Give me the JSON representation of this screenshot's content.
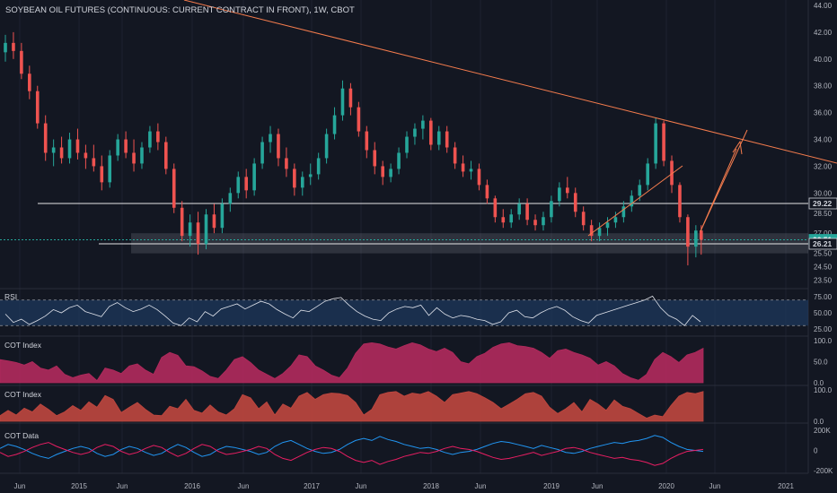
{
  "chart_data": {
    "type": "candlestick",
    "title": "SOYBEAN OIL FUTURES (CONTINUOUS: CURRENT CONTRACT IN FRONT), 1W, CBOT",
    "x_axis": {
      "labels": [
        "Jun",
        "2015",
        "Jun",
        "2016",
        "Jun",
        "2017",
        "Jun",
        "2018",
        "Jun",
        "2019",
        "Jun",
        "2020",
        "Jun",
        "2021"
      ]
    },
    "price_axis": {
      "ticks": [
        "44.00",
        "42.00",
        "40.00",
        "38.00",
        "36.00",
        "34.00",
        "32.00",
        "30.00",
        "28.50",
        "27.00",
        "25.50",
        "24.50",
        "23.50"
      ],
      "ylim": [
        23.0,
        44.0
      ],
      "price_labels": [
        {
          "text": "29.22",
          "value": 29.22,
          "style": "plain"
        },
        {
          "text": "26.51",
          "value": 26.51,
          "style": "teal"
        },
        {
          "text": "26.21",
          "value": 26.21,
          "style": "plain"
        }
      ]
    },
    "candles": [
      {
        "week": 0,
        "o": 40.5,
        "h": 41.8,
        "l": 39.8,
        "c": 41.2
      },
      {
        "week": 3,
        "o": 41.2,
        "h": 42.0,
        "l": 40.0,
        "c": 40.6
      },
      {
        "week": 6,
        "o": 40.6,
        "h": 41.2,
        "l": 38.5,
        "c": 38.9
      },
      {
        "week": 9,
        "o": 38.9,
        "h": 39.5,
        "l": 37.0,
        "c": 37.6
      },
      {
        "week": 12,
        "o": 37.6,
        "h": 38.0,
        "l": 34.8,
        "c": 35.2
      },
      {
        "week": 15,
        "o": 35.2,
        "h": 35.8,
        "l": 32.4,
        "c": 33.0
      },
      {
        "week": 18,
        "o": 33.0,
        "h": 34.0,
        "l": 32.0,
        "c": 33.4
      },
      {
        "week": 21,
        "o": 33.4,
        "h": 34.2,
        "l": 32.2,
        "c": 32.6
      },
      {
        "week": 24,
        "o": 32.6,
        "h": 34.5,
        "l": 32.2,
        "c": 34.0
      },
      {
        "week": 27,
        "o": 34.0,
        "h": 34.8,
        "l": 32.5,
        "c": 33.0
      },
      {
        "week": 30,
        "o": 33.0,
        "h": 33.6,
        "l": 31.8,
        "c": 32.6
      },
      {
        "week": 33,
        "o": 32.6,
        "h": 33.6,
        "l": 31.6,
        "c": 32.0
      },
      {
        "week": 36,
        "o": 32.0,
        "h": 32.8,
        "l": 30.2,
        "c": 30.8
      },
      {
        "week": 39,
        "o": 30.8,
        "h": 33.2,
        "l": 30.4,
        "c": 32.8
      },
      {
        "week": 42,
        "o": 32.8,
        "h": 34.4,
        "l": 32.4,
        "c": 34.0
      },
      {
        "week": 45,
        "o": 34.0,
        "h": 34.6,
        "l": 32.6,
        "c": 33.0
      },
      {
        "week": 48,
        "o": 33.0,
        "h": 34.0,
        "l": 31.6,
        "c": 32.2
      },
      {
        "week": 51,
        "o": 32.2,
        "h": 33.8,
        "l": 31.8,
        "c": 33.4
      },
      {
        "week": 54,
        "o": 33.4,
        "h": 35.0,
        "l": 33.0,
        "c": 34.6
      },
      {
        "week": 57,
        "o": 34.6,
        "h": 35.2,
        "l": 33.2,
        "c": 33.8
      },
      {
        "week": 60,
        "o": 33.8,
        "h": 34.2,
        "l": 31.4,
        "c": 31.8
      },
      {
        "week": 63,
        "o": 31.8,
        "h": 32.2,
        "l": 28.5,
        "c": 28.9
      },
      {
        "week": 66,
        "o": 28.9,
        "h": 29.4,
        "l": 26.4,
        "c": 26.8
      },
      {
        "week": 69,
        "o": 26.8,
        "h": 28.4,
        "l": 26.0,
        "c": 27.8
      },
      {
        "week": 72,
        "o": 27.8,
        "h": 28.6,
        "l": 25.4,
        "c": 26.2
      },
      {
        "week": 75,
        "o": 26.2,
        "h": 28.8,
        "l": 25.8,
        "c": 28.4
      },
      {
        "week": 78,
        "o": 28.4,
        "h": 29.2,
        "l": 27.0,
        "c": 27.4
      },
      {
        "week": 81,
        "o": 27.4,
        "h": 29.6,
        "l": 27.0,
        "c": 29.2
      },
      {
        "week": 84,
        "o": 29.2,
        "h": 30.4,
        "l": 28.6,
        "c": 30.0
      },
      {
        "week": 87,
        "o": 30.0,
        "h": 31.6,
        "l": 29.6,
        "c": 31.2
      },
      {
        "week": 90,
        "o": 31.2,
        "h": 31.8,
        "l": 29.6,
        "c": 30.2
      },
      {
        "week": 93,
        "o": 30.2,
        "h": 32.6,
        "l": 29.8,
        "c": 32.2
      },
      {
        "week": 96,
        "o": 32.2,
        "h": 34.2,
        "l": 31.8,
        "c": 33.8
      },
      {
        "week": 99,
        "o": 33.8,
        "h": 35.0,
        "l": 33.0,
        "c": 34.4
      },
      {
        "week": 102,
        "o": 34.4,
        "h": 34.8,
        "l": 32.0,
        "c": 32.6
      },
      {
        "week": 105,
        "o": 32.6,
        "h": 33.4,
        "l": 31.2,
        "c": 31.8
      },
      {
        "week": 108,
        "o": 31.8,
        "h": 32.2,
        "l": 29.8,
        "c": 30.4
      },
      {
        "week": 111,
        "o": 30.4,
        "h": 31.6,
        "l": 29.8,
        "c": 31.2
      },
      {
        "week": 114,
        "o": 31.2,
        "h": 32.2,
        "l": 30.6,
        "c": 31.4
      },
      {
        "week": 117,
        "o": 31.4,
        "h": 33.0,
        "l": 31.0,
        "c": 32.6
      },
      {
        "week": 120,
        "o": 32.6,
        "h": 34.8,
        "l": 32.2,
        "c": 34.4
      },
      {
        "week": 123,
        "o": 34.4,
        "h": 36.4,
        "l": 34.0,
        "c": 35.8
      },
      {
        "week": 126,
        "o": 35.8,
        "h": 38.4,
        "l": 35.4,
        "c": 37.8
      },
      {
        "week": 129,
        "o": 37.8,
        "h": 38.2,
        "l": 35.8,
        "c": 36.4
      },
      {
        "week": 132,
        "o": 36.4,
        "h": 36.8,
        "l": 34.2,
        "c": 34.6
      },
      {
        "week": 135,
        "o": 34.6,
        "h": 35.0,
        "l": 32.6,
        "c": 33.2
      },
      {
        "week": 138,
        "o": 33.2,
        "h": 33.8,
        "l": 31.4,
        "c": 32.0
      },
      {
        "week": 141,
        "o": 32.0,
        "h": 32.4,
        "l": 30.6,
        "c": 31.2
      },
      {
        "week": 144,
        "o": 31.2,
        "h": 32.2,
        "l": 30.8,
        "c": 31.8
      },
      {
        "week": 147,
        "o": 31.8,
        "h": 33.4,
        "l": 31.4,
        "c": 33.0
      },
      {
        "week": 150,
        "o": 33.0,
        "h": 34.6,
        "l": 32.6,
        "c": 34.2
      },
      {
        "week": 153,
        "o": 34.2,
        "h": 35.2,
        "l": 33.6,
        "c": 34.8
      },
      {
        "week": 156,
        "o": 34.8,
        "h": 35.8,
        "l": 34.0,
        "c": 35.4
      },
      {
        "week": 159,
        "o": 35.4,
        "h": 35.6,
        "l": 33.2,
        "c": 33.6
      },
      {
        "week": 162,
        "o": 33.6,
        "h": 35.0,
        "l": 33.2,
        "c": 34.6
      },
      {
        "week": 165,
        "o": 34.6,
        "h": 35.0,
        "l": 33.0,
        "c": 33.4
      },
      {
        "week": 168,
        "o": 33.4,
        "h": 33.8,
        "l": 31.8,
        "c": 32.2
      },
      {
        "week": 171,
        "o": 32.2,
        "h": 32.8,
        "l": 31.2,
        "c": 31.6
      },
      {
        "week": 174,
        "o": 31.6,
        "h": 32.4,
        "l": 31.0,
        "c": 31.8
      },
      {
        "week": 177,
        "o": 31.8,
        "h": 32.2,
        "l": 30.2,
        "c": 30.6
      },
      {
        "week": 180,
        "o": 30.6,
        "h": 31.0,
        "l": 29.2,
        "c": 29.6
      },
      {
        "week": 183,
        "o": 29.6,
        "h": 29.8,
        "l": 27.8,
        "c": 28.2
      },
      {
        "week": 186,
        "o": 28.2,
        "h": 28.8,
        "l": 27.4,
        "c": 27.8
      },
      {
        "week": 189,
        "o": 27.8,
        "h": 28.8,
        "l": 27.4,
        "c": 28.4
      },
      {
        "week": 192,
        "o": 28.4,
        "h": 29.6,
        "l": 28.0,
        "c": 29.2
      },
      {
        "week": 195,
        "o": 29.2,
        "h": 29.6,
        "l": 27.6,
        "c": 28.0
      },
      {
        "week": 198,
        "o": 28.0,
        "h": 28.4,
        "l": 27.2,
        "c": 27.6
      },
      {
        "week": 201,
        "o": 27.6,
        "h": 28.6,
        "l": 27.2,
        "c": 28.2
      },
      {
        "week": 204,
        "o": 28.2,
        "h": 29.8,
        "l": 27.8,
        "c": 29.4
      },
      {
        "week": 207,
        "o": 29.4,
        "h": 30.8,
        "l": 29.0,
        "c": 30.4
      },
      {
        "week": 210,
        "o": 30.4,
        "h": 31.2,
        "l": 29.6,
        "c": 30.0
      },
      {
        "week": 213,
        "o": 30.0,
        "h": 30.4,
        "l": 28.2,
        "c": 28.6
      },
      {
        "week": 216,
        "o": 28.6,
        "h": 29.0,
        "l": 27.2,
        "c": 27.6
      },
      {
        "week": 219,
        "o": 27.6,
        "h": 28.0,
        "l": 26.4,
        "c": 26.8
      },
      {
        "week": 222,
        "o": 26.8,
        "h": 27.8,
        "l": 26.4,
        "c": 27.4
      },
      {
        "week": 225,
        "o": 27.4,
        "h": 28.2,
        "l": 26.8,
        "c": 27.8
      },
      {
        "week": 228,
        "o": 27.8,
        "h": 28.6,
        "l": 27.4,
        "c": 28.2
      },
      {
        "week": 231,
        "o": 28.2,
        "h": 29.4,
        "l": 27.8,
        "c": 29.0
      },
      {
        "week": 234,
        "o": 29.0,
        "h": 30.2,
        "l": 28.6,
        "c": 29.8
      },
      {
        "week": 237,
        "o": 29.8,
        "h": 31.0,
        "l": 29.4,
        "c": 30.6
      },
      {
        "week": 240,
        "o": 30.6,
        "h": 32.6,
        "l": 30.2,
        "c": 32.2
      },
      {
        "week": 243,
        "o": 32.2,
        "h": 35.6,
        "l": 31.8,
        "c": 35.2
      },
      {
        "week": 246,
        "o": 35.2,
        "h": 35.4,
        "l": 32.0,
        "c": 32.4
      },
      {
        "week": 249,
        "o": 32.4,
        "h": 32.8,
        "l": 30.0,
        "c": 30.6
      },
      {
        "week": 252,
        "o": 30.6,
        "h": 30.8,
        "l": 27.8,
        "c": 28.2
      },
      {
        "week": 255,
        "o": 28.2,
        "h": 28.4,
        "l": 24.6,
        "c": 26.0
      },
      {
        "week": 258,
        "o": 26.0,
        "h": 27.6,
        "l": 25.2,
        "c": 27.2
      },
      {
        "week": 260,
        "o": 27.2,
        "h": 27.6,
        "l": 25.4,
        "c": 26.51
      }
    ],
    "support_zone": {
      "low": 25.5,
      "high": 27.0
    },
    "horizontal_lines": [
      29.22,
      26.21
    ],
    "rsi_panel": {
      "label": "RSI",
      "ticks": [
        "75.00",
        "50.00",
        "25.00"
      ],
      "ylim": [
        15,
        85
      ],
      "band": [
        30,
        70
      ],
      "values": [
        48,
        35,
        40,
        32,
        38,
        45,
        55,
        50,
        58,
        62,
        52,
        48,
        44,
        60,
        66,
        58,
        52,
        56,
        62,
        55,
        45,
        34,
        30,
        42,
        36,
        52,
        45,
        56,
        60,
        64,
        56,
        62,
        68,
        64,
        55,
        48,
        42,
        54,
        52,
        60,
        68,
        72,
        74,
        62,
        52,
        45,
        40,
        38,
        50,
        56,
        60,
        58,
        62,
        46,
        58,
        48,
        42,
        46,
        44,
        40,
        38,
        32,
        36,
        50,
        54,
        44,
        42,
        50,
        56,
        60,
        54,
        44,
        38,
        34,
        46,
        50,
        54,
        58,
        62,
        66,
        70,
        76,
        58,
        46,
        40,
        30,
        46,
        36
      ]
    },
    "cot_panels": [
      {
        "label": "COT Index",
        "ticks": [
          "100.0",
          "50.0",
          "0.0"
        ],
        "ylim": [
          0,
          100
        ],
        "color": "#b22a5d",
        "values": [
          55,
          52,
          48,
          42,
          50,
          35,
          30,
          40,
          20,
          12,
          18,
          22,
          5,
          35,
          30,
          22,
          40,
          45,
          30,
          20,
          60,
          72,
          65,
          40,
          38,
          28,
          15,
          10,
          30,
          55,
          62,
          48,
          30,
          20,
          10,
          22,
          40,
          66,
          62,
          40,
          30,
          18,
          12,
          35,
          70,
          92,
          95,
          92,
          85,
          80,
          88,
          95,
          90,
          80,
          74,
          82,
          72,
          50,
          45,
          62,
          70,
          84,
          92,
          95,
          88,
          86,
          82,
          72,
          58,
          76,
          80,
          72,
          66,
          58,
          42,
          50,
          40,
          22,
          12,
          6,
          20,
          55,
          72,
          62,
          48,
          66,
          72,
          82
        ]
      },
      {
        "label": "COT Index",
        "ticks": [
          "100.0",
          "0.0"
        ],
        "ylim": [
          0,
          100
        ],
        "color": "#c0473f",
        "values": [
          18,
          35,
          20,
          42,
          30,
          55,
          38,
          18,
          30,
          50,
          35,
          62,
          45,
          82,
          70,
          28,
          45,
          60,
          38,
          20,
          18,
          48,
          40,
          70,
          35,
          26,
          52,
          30,
          20,
          40,
          85,
          75,
          40,
          62,
          20,
          55,
          42,
          80,
          92,
          70,
          85,
          90,
          88,
          82,
          60,
          20,
          38,
          85,
          92,
          95,
          80,
          90,
          86,
          95,
          80,
          60,
          85,
          90,
          95,
          88,
          75,
          60,
          40,
          55,
          70,
          88,
          92,
          80,
          45,
          25,
          40,
          60,
          30,
          70,
          55,
          35,
          68,
          48,
          40,
          25,
          10,
          20,
          15,
          50,
          80,
          92,
          88,
          95
        ]
      }
    ],
    "cot_data_panel": {
      "label": "COT Data",
      "ticks": [
        "200K",
        "0",
        "-200K"
      ],
      "ylim": [
        -220,
        220
      ],
      "series": [
        {
          "color": "#2196f3",
          "values": [
            20,
            60,
            40,
            10,
            -30,
            -60,
            -80,
            -40,
            -10,
            20,
            40,
            20,
            -30,
            -60,
            -40,
            10,
            40,
            20,
            -20,
            -50,
            -30,
            20,
            60,
            30,
            -20,
            -60,
            -40,
            10,
            40,
            30,
            10,
            -10,
            -40,
            -20,
            40,
            80,
            100,
            60,
            20,
            -10,
            -30,
            -20,
            10,
            60,
            100,
            120,
            100,
            140,
            110,
            90,
            60,
            40,
            20,
            30,
            10,
            -20,
            -40,
            -20,
            -10,
            10,
            40,
            70,
            90,
            80,
            60,
            40,
            20,
            50,
            30,
            10,
            -20,
            -30,
            -10,
            20,
            40,
            60,
            80,
            70,
            90,
            100,
            120,
            150,
            130,
            80,
            40,
            10,
            0,
            -10
          ]
        },
        {
          "color": "#e91e63",
          "values": [
            -20,
            -60,
            -40,
            -10,
            30,
            60,
            80,
            40,
            10,
            -20,
            -40,
            -20,
            30,
            60,
            40,
            -10,
            -40,
            -20,
            20,
            50,
            30,
            -20,
            -60,
            -30,
            20,
            60,
            40,
            -10,
            -40,
            -30,
            -10,
            10,
            40,
            20,
            -40,
            -80,
            -100,
            -60,
            -20,
            10,
            30,
            20,
            -10,
            -60,
            -100,
            -120,
            -100,
            -140,
            -110,
            -90,
            -60,
            -40,
            -20,
            -30,
            -10,
            20,
            40,
            20,
            10,
            -10,
            -40,
            -70,
            -90,
            -80,
            -60,
            -40,
            -20,
            -50,
            -30,
            -10,
            20,
            30,
            10,
            -20,
            -40,
            -60,
            -80,
            -70,
            -90,
            -100,
            -120,
            -150,
            -130,
            -80,
            -40,
            -10,
            0,
            10
          ]
        }
      ]
    }
  }
}
